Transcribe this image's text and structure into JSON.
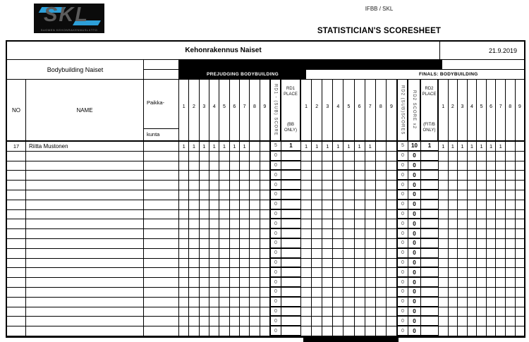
{
  "page": {
    "logo": {
      "text": "SKL",
      "subtext": "SUOMEN KEHONRAKENNUSLIITTO"
    },
    "federation": "IFBB / SKL",
    "title": "STATISTICIAN'S SCORESHEET"
  },
  "sheet": {
    "class_title": "Kehonrakennus Naiset",
    "date": "21.9.2019",
    "subtitle": "Bodybuilding Naiset",
    "prejudging_banner": "PREJUDGING BODYBUILDING",
    "finals_banner": "FINALS: BODYBUILDING"
  },
  "columns": {
    "no": "NO",
    "name": "NAME",
    "locality_line1": "Paikka-",
    "locality_line2": "kunta",
    "judge_numbers": [
      "1",
      "2",
      "3",
      "4",
      "5",
      "6",
      "7",
      "8",
      "9"
    ],
    "rd1_score_vertical": "RD1 - (SUB) SCORE",
    "rd1_place_label": "RD1 PLACE",
    "rd1_place_note": "(BB ONLY)",
    "rd2_subscore_vertical": "RD2 (SUB)SCORES",
    "rd2_x2_vertical": "RD2 SCORE x2",
    "rd2_place_label": "RD2 PLACE",
    "rd2_place_note": "(FIT/B ONLY)"
  },
  "rows": [
    {
      "no": "17",
      "name": "Riitta Mustonen",
      "locality": "",
      "judges_rd1": [
        "1",
        "1",
        "1",
        "1",
        "1",
        "1",
        "1",
        "",
        ""
      ],
      "rd1_score": "5",
      "rd1_place": "1",
      "judges_rd2": [
        "1",
        "1",
        "1",
        "1",
        "1",
        "1",
        "1",
        "",
        ""
      ],
      "rd2_subscore": "5",
      "rd2_x2": "10",
      "rd2_place": "1",
      "judges_rd3": [
        "1",
        "1",
        "1",
        "1",
        "1",
        "1",
        "1",
        "",
        ""
      ]
    }
  ],
  "empty_rows": {
    "count": 19,
    "rd1_score": "0",
    "rd1_place": "",
    "rd2_subscore": "0",
    "rd2_x2": "0",
    "rd2_place": ""
  },
  "colors": {
    "accent_blue": "#2d9fd8",
    "ink": "#000000"
  }
}
